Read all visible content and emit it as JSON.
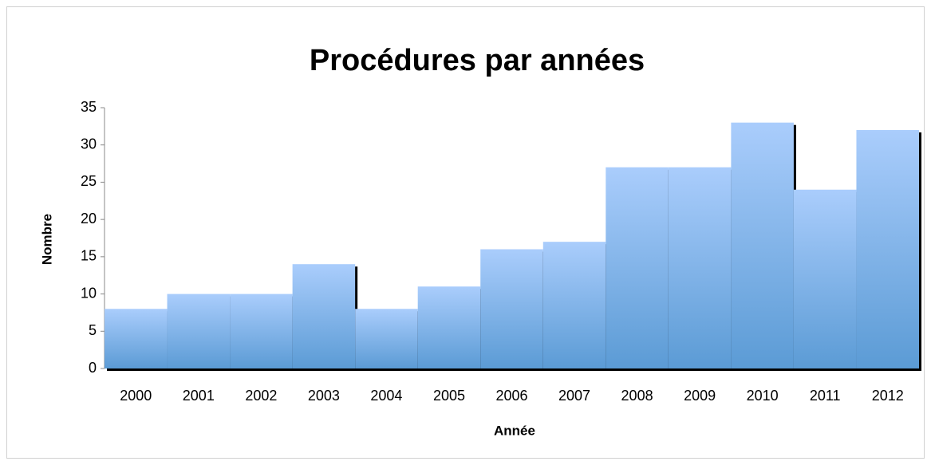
{
  "chart_data": {
    "type": "bar",
    "title": "Procédures par années",
    "x_label": "Année",
    "y_label": "Nombre",
    "categories": [
      "2000",
      "2001",
      "2002",
      "2003",
      "2004",
      "2005",
      "2006",
      "2007",
      "2008",
      "2009",
      "2010",
      "2011",
      "2012"
    ],
    "values": [
      8,
      10,
      10,
      14,
      8,
      11,
      16,
      17,
      27,
      27,
      33,
      24,
      32
    ],
    "color": "#5b9bd5",
    "ylim": [
      0,
      35
    ],
    "yticks": [
      0,
      5,
      10,
      15,
      20,
      25,
      30,
      35
    ],
    "grid": false
  }
}
